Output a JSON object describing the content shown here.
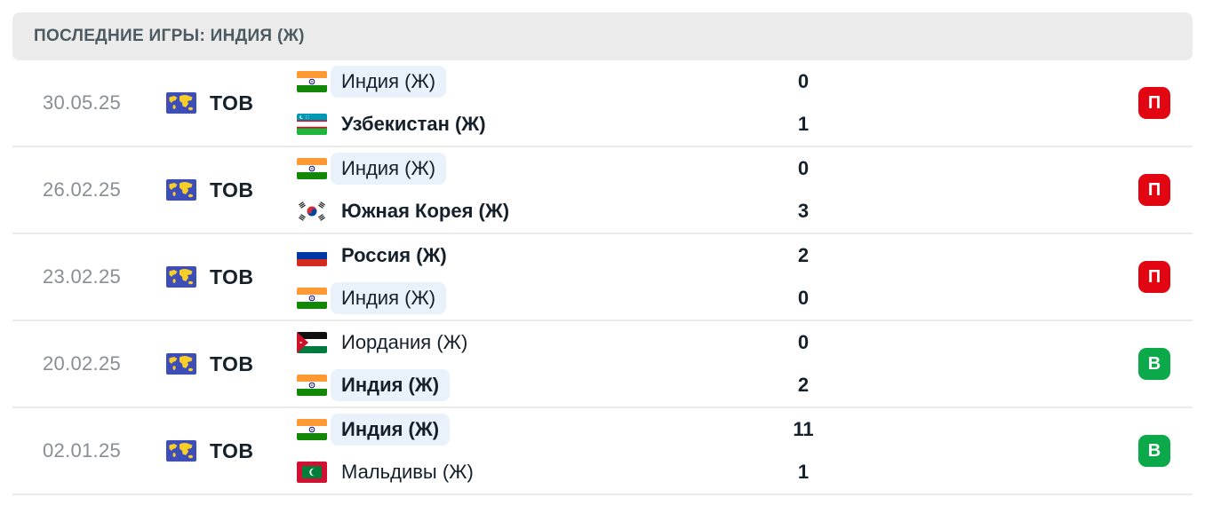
{
  "header": {
    "title": "ПОСЛЕДНИЕ ИГРЫ: ИНДИЯ (Ж)"
  },
  "colors": {
    "header_bg": "#ebebeb",
    "header_text": "#4d5a62",
    "highlight_pill": "#e9f1fb",
    "divider": "#ebebeb",
    "loss_badge": "#e20613",
    "win_badge": "#0ca94a",
    "date_text": "#878e96",
    "main_text": "#15202b"
  },
  "matches": [
    {
      "date": "30.05.25",
      "tournament": {
        "label": "ТОВ",
        "icon": "world-icon"
      },
      "home": {
        "name": "Индия (Ж)",
        "flag": "india",
        "score": "0",
        "highlighted": true,
        "bold": false
      },
      "away": {
        "name": "Узбекистан (Ж)",
        "flag": "uzbekistan",
        "score": "1",
        "highlighted": false,
        "bold": true
      },
      "result": {
        "label": "П",
        "type": "loss",
        "color": "#e20613"
      }
    },
    {
      "date": "26.02.25",
      "tournament": {
        "label": "ТОВ",
        "icon": "world-icon"
      },
      "home": {
        "name": "Индия (Ж)",
        "flag": "india",
        "score": "0",
        "highlighted": true,
        "bold": false
      },
      "away": {
        "name": "Южная Корея (Ж)",
        "flag": "south-korea",
        "score": "3",
        "highlighted": false,
        "bold": true
      },
      "result": {
        "label": "П",
        "type": "loss",
        "color": "#e20613"
      }
    },
    {
      "date": "23.02.25",
      "tournament": {
        "label": "ТОВ",
        "icon": "world-icon"
      },
      "home": {
        "name": "Россия (Ж)",
        "flag": "russia",
        "score": "2",
        "highlighted": false,
        "bold": true
      },
      "away": {
        "name": "Индия (Ж)",
        "flag": "india",
        "score": "0",
        "highlighted": true,
        "bold": false
      },
      "result": {
        "label": "П",
        "type": "loss",
        "color": "#e20613"
      }
    },
    {
      "date": "20.02.25",
      "tournament": {
        "label": "ТОВ",
        "icon": "world-icon"
      },
      "home": {
        "name": "Иордания (Ж)",
        "flag": "jordan",
        "score": "0",
        "highlighted": false,
        "bold": false
      },
      "away": {
        "name": "Индия (Ж)",
        "flag": "india",
        "score": "2",
        "highlighted": true,
        "bold": true
      },
      "result": {
        "label": "В",
        "type": "win",
        "color": "#0ca94a"
      }
    },
    {
      "date": "02.01.25",
      "tournament": {
        "label": "ТОВ",
        "icon": "world-icon"
      },
      "home": {
        "name": "Индия (Ж)",
        "flag": "india",
        "score": "11",
        "highlighted": true,
        "bold": true
      },
      "away": {
        "name": "Мальдивы (Ж)",
        "flag": "maldives",
        "score": "1",
        "highlighted": false,
        "bold": false
      },
      "result": {
        "label": "В",
        "type": "win",
        "color": "#0ca94a"
      }
    }
  ]
}
